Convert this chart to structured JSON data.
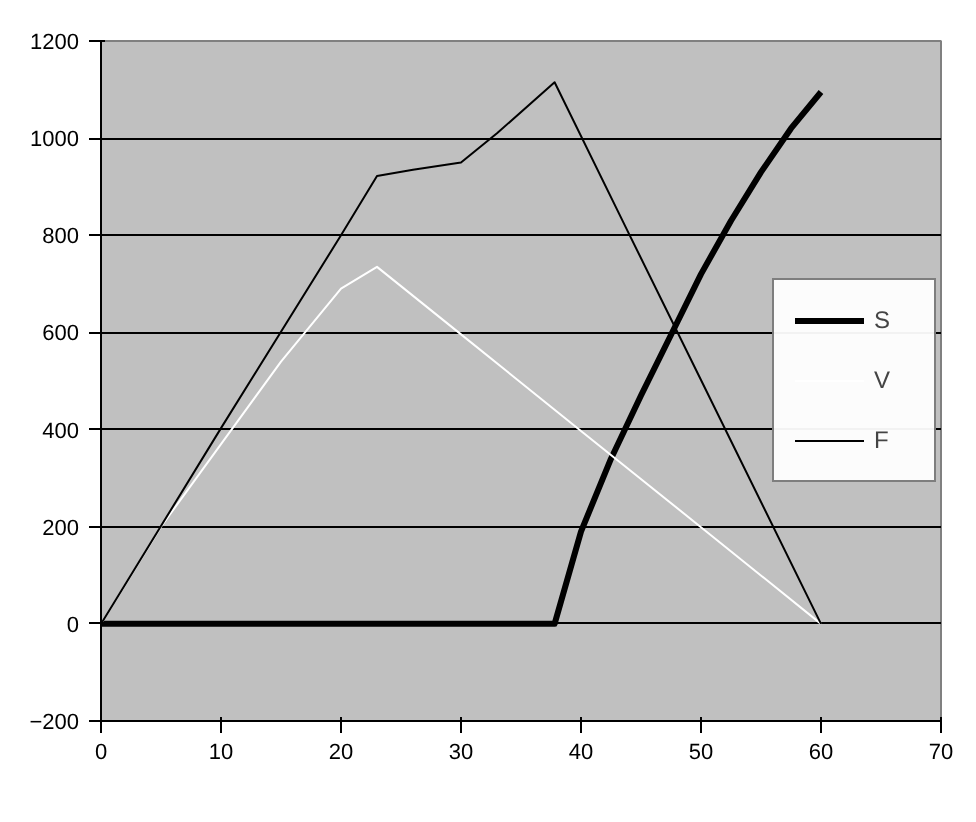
{
  "chart_data": {
    "type": "line",
    "xlim": [
      0,
      70
    ],
    "xticks": [
      0,
      10,
      20,
      30,
      40,
      50,
      60,
      70
    ],
    "ylim": [
      -200,
      1200
    ],
    "yticks": [
      -200,
      0,
      200,
      400,
      600,
      800,
      1000,
      1200
    ],
    "grid": "y",
    "legend": "right",
    "series": [
      {
        "name": "S",
        "color": "#000000",
        "x": [
          0,
          37.8,
          40,
          42.5,
          45,
          48,
          50,
          52.5,
          55,
          57.5,
          60
        ],
        "values": [
          0,
          0,
          190,
          340,
          470,
          620,
          720,
          830,
          930,
          1020,
          1095
        ]
      },
      {
        "name": "V",
        "color": "#ffffff",
        "x": [
          0,
          5,
          10,
          15,
          20,
          23,
          30,
          40,
          50,
          60
        ],
        "values": [
          0,
          200,
          370,
          540,
          690,
          735,
          596,
          397,
          199,
          0
        ]
      },
      {
        "name": "F",
        "color": "#000000",
        "x": [
          0,
          10,
          20,
          23,
          26,
          30,
          33,
          37.8,
          44,
          50,
          60
        ],
        "values": [
          0,
          403,
          800,
          922,
          935,
          950,
          1010,
          1115,
          803,
          502,
          0
        ]
      }
    ]
  }
}
